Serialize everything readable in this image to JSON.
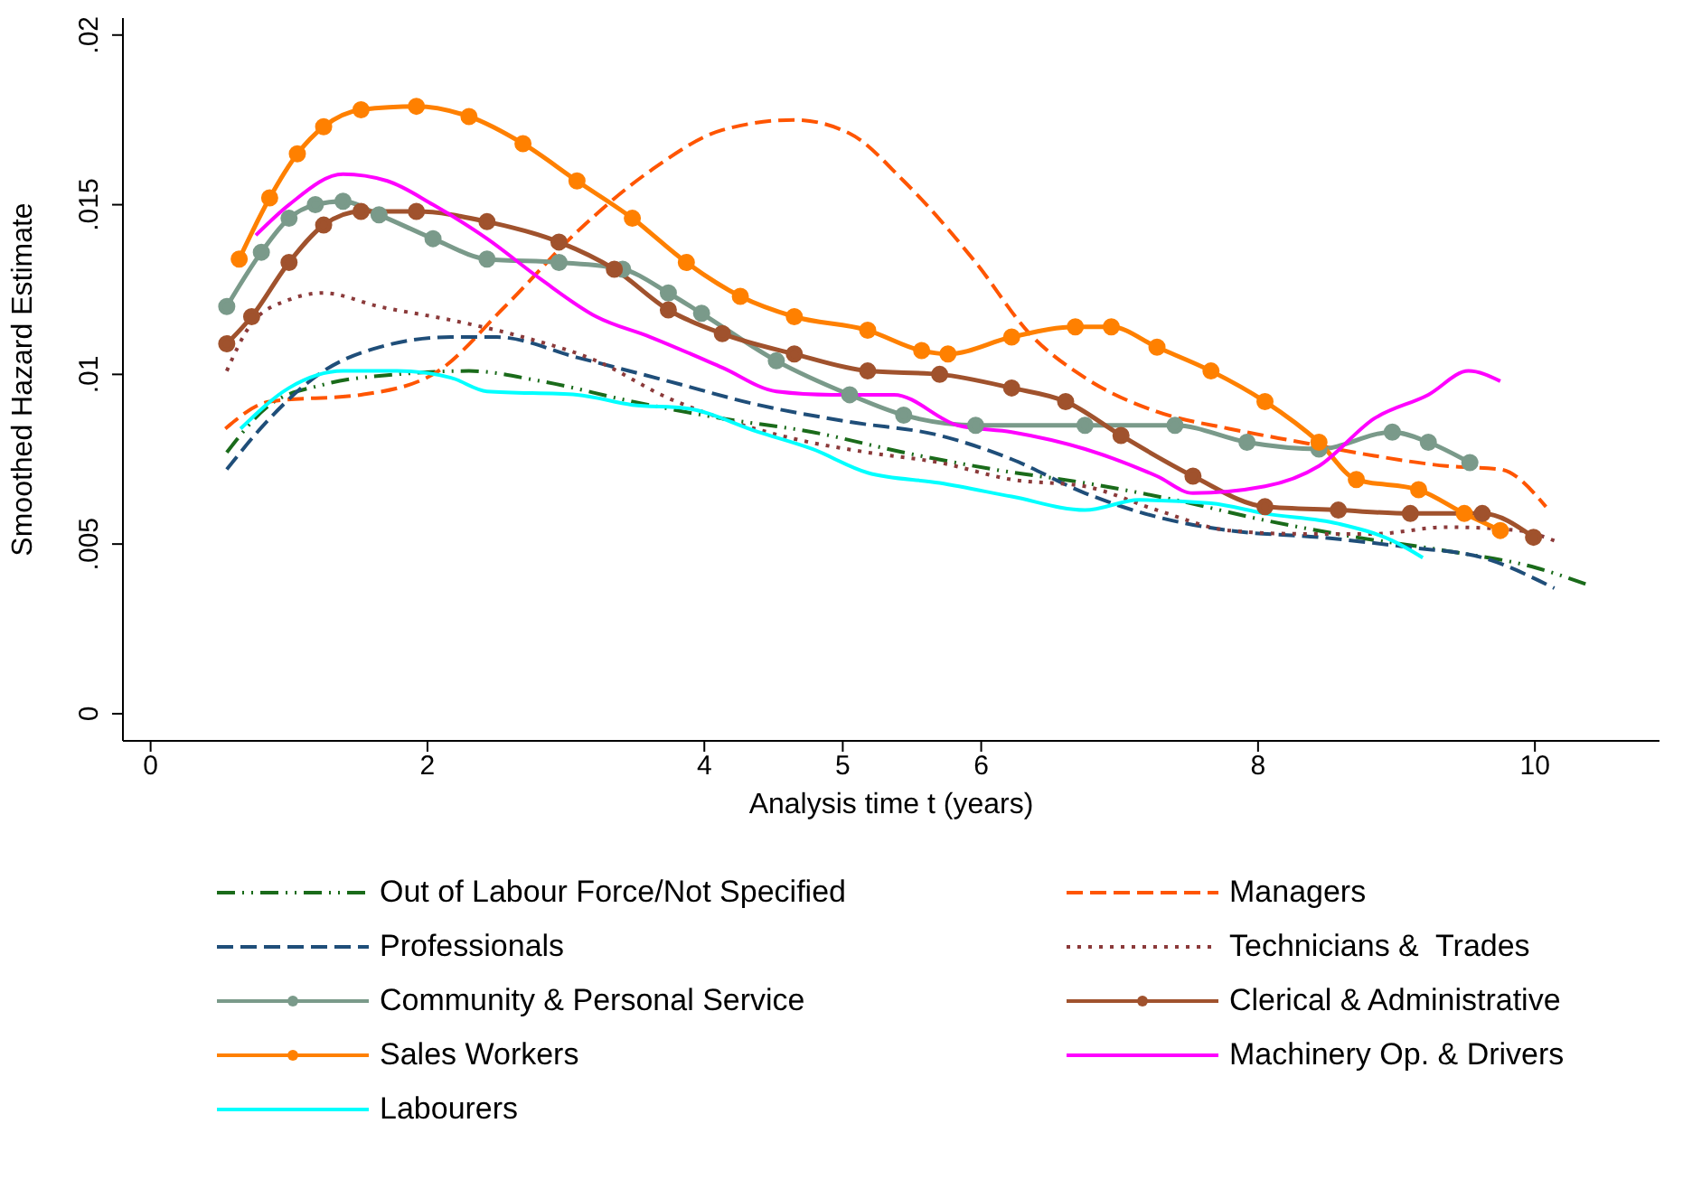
{
  "chart_data": {
    "type": "line",
    "xlabel": "Analysis time t (years)",
    "ylabel": "Smoothed Hazard Estimate",
    "xlim": [
      -0.2,
      10.9
    ],
    "ylim": [
      -0.0008,
      0.0205
    ],
    "xticks": [
      0,
      2,
      4,
      5,
      6,
      8,
      10
    ],
    "yticks": [
      0,
      {
        "value": 0.005,
        "label": ".005"
      },
      {
        "value": 0.01,
        "label": ".01"
      },
      {
        "value": 0.015,
        "label": ".015"
      },
      {
        "value": 0.02,
        "label": ".02"
      }
    ],
    "grid": false,
    "legend": "bottom",
    "series": [
      {
        "name": "Out of Labour Force/Not Specified",
        "color": "#1a6b1a",
        "line_style": "dashdot",
        "marker": "none",
        "x": [
          0.55,
          0.86,
          1.25,
          1.78,
          2.3,
          2.82,
          3.48,
          4.13,
          4.78,
          5.44,
          6.09,
          6.75,
          7.4,
          8.05,
          8.71,
          9.36,
          10.01,
          10.38
        ],
        "values": [
          0.0077,
          0.0091,
          0.0097,
          0.01,
          0.0101,
          0.0098,
          0.0092,
          0.0087,
          0.0083,
          0.0077,
          0.0072,
          0.0068,
          0.0063,
          0.0057,
          0.0052,
          0.0048,
          0.0043,
          0.0038
        ]
      },
      {
        "name": "Managers",
        "color": "#ff5500",
        "line_style": "dashed",
        "marker": "none",
        "x": [
          0.54,
          0.86,
          1.52,
          2.04,
          2.56,
          3.08,
          3.61,
          4.13,
          4.65,
          5.05,
          5.44,
          5.96,
          6.35,
          6.75,
          7.27,
          7.79,
          8.31,
          8.84,
          9.36,
          9.75,
          10.08
        ],
        "values": [
          0.0084,
          0.0092,
          0.0094,
          0.01,
          0.012,
          0.0142,
          0.016,
          0.0172,
          0.0175,
          0.0171,
          0.0157,
          0.0133,
          0.0112,
          0.0099,
          0.0089,
          0.0084,
          0.008,
          0.0076,
          0.0073,
          0.0072,
          0.0061
        ]
      },
      {
        "name": "Professionals",
        "color": "#1f4e79",
        "line_style": "dashed",
        "marker": "none",
        "x": [
          0.55,
          0.86,
          1.25,
          1.65,
          2.17,
          2.5,
          3.08,
          3.74,
          4.39,
          5.05,
          5.7,
          6.22,
          6.75,
          7.27,
          7.79,
          8.44,
          9.1,
          9.62,
          10.14
        ],
        "values": [
          0.0072,
          0.0087,
          0.0101,
          0.0108,
          0.0111,
          0.0111,
          0.0105,
          0.0098,
          0.0091,
          0.0086,
          0.0082,
          0.0075,
          0.0065,
          0.0058,
          0.0054,
          0.0052,
          0.0049,
          0.0046,
          0.0037
        ]
      },
      {
        "name": "Technicians &  Trades",
        "color": "#8b3a3a",
        "line_style": "dotted",
        "marker": "none",
        "x": [
          0.55,
          0.73,
          1.0,
          1.25,
          1.65,
          2.17,
          2.69,
          3.22,
          3.74,
          4.13,
          4.65,
          5.18,
          5.7,
          6.22,
          6.75,
          7.27,
          7.79,
          8.31,
          8.84,
          9.36,
          9.88,
          10.14
        ],
        "values": [
          0.0101,
          0.0115,
          0.0122,
          0.0124,
          0.012,
          0.0116,
          0.0111,
          0.0104,
          0.0093,
          0.0087,
          0.0081,
          0.0077,
          0.0074,
          0.0069,
          0.0067,
          0.006,
          0.0054,
          0.0053,
          0.0053,
          0.0055,
          0.0054,
          0.0051
        ]
      },
      {
        "name": "Community & Personal Service",
        "color": "#7a9a8a",
        "line_style": "solid",
        "marker": "circle",
        "x": [
          0.55,
          0.8,
          1.0,
          1.19,
          1.39,
          1.65,
          2.04,
          2.43,
          2.95,
          3.41,
          3.74,
          3.98,
          4.52,
          5.05,
          5.44,
          5.96,
          6.75,
          7.4,
          7.92,
          8.44,
          8.97,
          9.23,
          9.53
        ],
        "values": [
          0.012,
          0.0136,
          0.0146,
          0.015,
          0.0151,
          0.0147,
          0.014,
          0.0134,
          0.0133,
          0.0131,
          0.0124,
          0.0118,
          0.0104,
          0.0094,
          0.0088,
          0.0085,
          0.0085,
          0.0085,
          0.008,
          0.0078,
          0.0083,
          0.008,
          0.0074
        ]
      },
      {
        "name": "Clerical & Administrative",
        "color": "#a0522d",
        "line_style": "solid",
        "marker": "circle",
        "x": [
          0.55,
          0.73,
          1.0,
          1.25,
          1.52,
          1.92,
          2.43,
          2.95,
          3.35,
          3.74,
          4.13,
          4.65,
          5.18,
          5.7,
          6.22,
          6.61,
          7.01,
          7.53,
          8.05,
          8.58,
          9.1,
          9.62,
          9.99
        ],
        "values": [
          0.0109,
          0.0117,
          0.0133,
          0.0144,
          0.0148,
          0.0148,
          0.0145,
          0.0139,
          0.0131,
          0.0119,
          0.0112,
          0.0106,
          0.0101,
          0.01,
          0.0096,
          0.0092,
          0.0082,
          0.007,
          0.0061,
          0.006,
          0.0059,
          0.0059,
          0.0052
        ]
      },
      {
        "name": "Sales Workers",
        "color": "#ff8000",
        "line_style": "solid",
        "marker": "circle",
        "x": [
          0.64,
          0.86,
          1.06,
          1.25,
          1.52,
          1.92,
          2.3,
          2.69,
          3.08,
          3.48,
          3.87,
          4.26,
          4.65,
          5.18,
          5.57,
          5.76,
          6.22,
          6.68,
          6.94,
          7.27,
          7.66,
          8.05,
          8.44,
          8.71,
          9.16,
          9.49,
          9.75
        ],
        "values": [
          0.0134,
          0.0152,
          0.0165,
          0.0173,
          0.0178,
          0.0179,
          0.0176,
          0.0168,
          0.0157,
          0.0146,
          0.0133,
          0.0123,
          0.0117,
          0.0113,
          0.0107,
          0.0106,
          0.0111,
          0.0114,
          0.0114,
          0.0108,
          0.0101,
          0.0092,
          0.008,
          0.0069,
          0.0066,
          0.0059,
          0.0054
        ]
      },
      {
        "name": "Machinery Op. & Drivers",
        "color": "#ff00ff",
        "line_style": "solid",
        "marker": "none",
        "x": [
          0.76,
          1.0,
          1.39,
          1.71,
          2.04,
          2.43,
          2.82,
          3.22,
          3.61,
          4.13,
          4.52,
          4.92,
          5.37,
          5.83,
          6.22,
          6.75,
          7.27,
          7.53,
          8.05,
          8.44,
          8.84,
          9.23,
          9.52,
          9.75
        ],
        "values": [
          0.0141,
          0.015,
          0.0159,
          0.0157,
          0.015,
          0.014,
          0.0128,
          0.0117,
          0.0111,
          0.0102,
          0.0095,
          0.0094,
          0.0094,
          0.0085,
          0.0083,
          0.0078,
          0.007,
          0.0065,
          0.0067,
          0.0073,
          0.0087,
          0.0094,
          0.0101,
          0.0098
        ]
      },
      {
        "name": "Labourers",
        "color": "#00ffff",
        "line_style": "solid",
        "marker": "none",
        "x": [
          0.65,
          1.0,
          1.39,
          1.78,
          2.17,
          2.43,
          3.08,
          3.48,
          3.87,
          4.39,
          4.78,
          5.18,
          5.7,
          6.22,
          6.75,
          7.14,
          7.66,
          8.05,
          8.58,
          8.97,
          9.19
        ],
        "values": [
          0.0084,
          0.0096,
          0.0101,
          0.0101,
          0.0099,
          0.0095,
          0.0094,
          0.0091,
          0.009,
          0.0083,
          0.0078,
          0.0071,
          0.0068,
          0.0064,
          0.006,
          0.0063,
          0.0062,
          0.0059,
          0.0056,
          0.0051,
          0.0046
        ]
      }
    ]
  }
}
